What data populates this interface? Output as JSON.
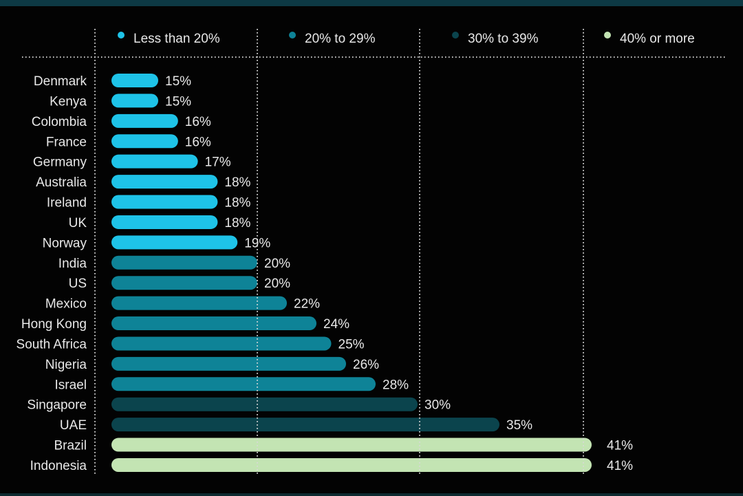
{
  "chart_data": {
    "type": "bar",
    "orientation": "horizontal",
    "categories": [
      "Denmark",
      "Kenya",
      "Colombia",
      "France",
      "Germany",
      "Australia",
      "Ireland",
      "UK",
      "Norway",
      "India",
      "US",
      "Mexico",
      "Hong Kong",
      "South Africa",
      "Nigeria",
      "Israel",
      "Singapore",
      "UAE",
      "Brazil",
      "Indonesia"
    ],
    "values": [
      15,
      15,
      16,
      16,
      17,
      18,
      18,
      18,
      19,
      20,
      20,
      22,
      24,
      25,
      26,
      28,
      30,
      35,
      41,
      41
    ],
    "value_labels": [
      "15%",
      "15%",
      "16%",
      "16%",
      "17%",
      "18%",
      "18%",
      "18%",
      "19%",
      "20%",
      "20%",
      "22%",
      "24%",
      "25%",
      "26%",
      "28%",
      "30%",
      "35%",
      "41%",
      "41%"
    ],
    "legend": [
      {
        "label": "Less than 20%",
        "color": "#1ec3e8"
      },
      {
        "label": "20% to 29%",
        "color": "#0e8397"
      },
      {
        "label": "30% to 39%",
        "color": "#0b444d"
      },
      {
        "label": "40% or more",
        "color": "#c3e4b3"
      }
    ],
    "legend_placement": "top",
    "grid": true,
    "unit": "%"
  }
}
